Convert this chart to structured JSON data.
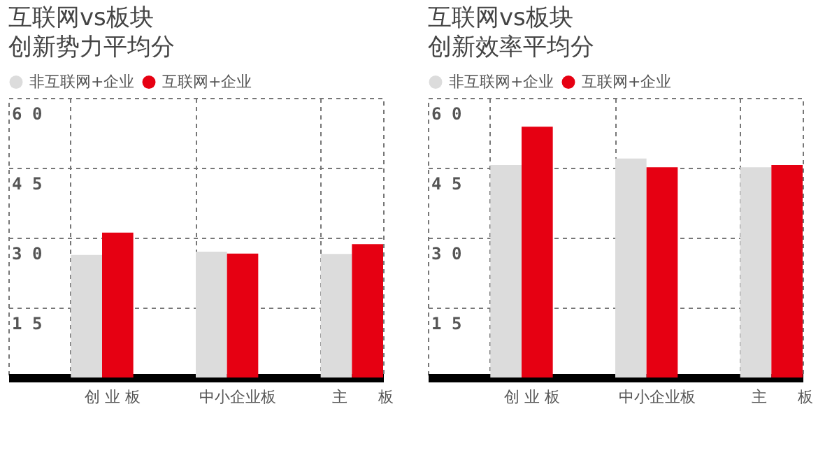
{
  "chart_data": [
    {
      "type": "bar",
      "title": "互联网vs板块",
      "subtitle": "创新势力平均分",
      "categories": [
        "创 业 板",
        "中小企业板",
        "主　　板"
      ],
      "series": [
        {
          "name": "非互联网+企业",
          "color": "#dcdcdc",
          "values": [
            26.3,
            27.0,
            26.5
          ]
        },
        {
          "name": "互联网+企业",
          "color": "#e60012",
          "values": [
            31.1,
            26.6,
            28.6
          ]
        }
      ],
      "ylim": [
        0,
        60
      ],
      "yticks": [
        15,
        30,
        45,
        60
      ],
      "grid": true,
      "legend": "top left"
    },
    {
      "type": "bar",
      "title": "互联网vs板块",
      "subtitle": "创新效率平均分",
      "categories": [
        "创 业 板",
        "中小企业板",
        "主　　板"
      ],
      "series": [
        {
          "name": "非互联网+企业",
          "color": "#dcdcdc",
          "values": [
            45.6,
            47.0,
            45.1
          ]
        },
        {
          "name": "互联网+企业",
          "color": "#e60012",
          "values": [
            53.8,
            45.1,
            45.6
          ]
        }
      ],
      "ylim": [
        0,
        60
      ],
      "yticks": [
        15,
        30,
        45,
        60
      ],
      "grid": true,
      "legend": "top left"
    }
  ]
}
